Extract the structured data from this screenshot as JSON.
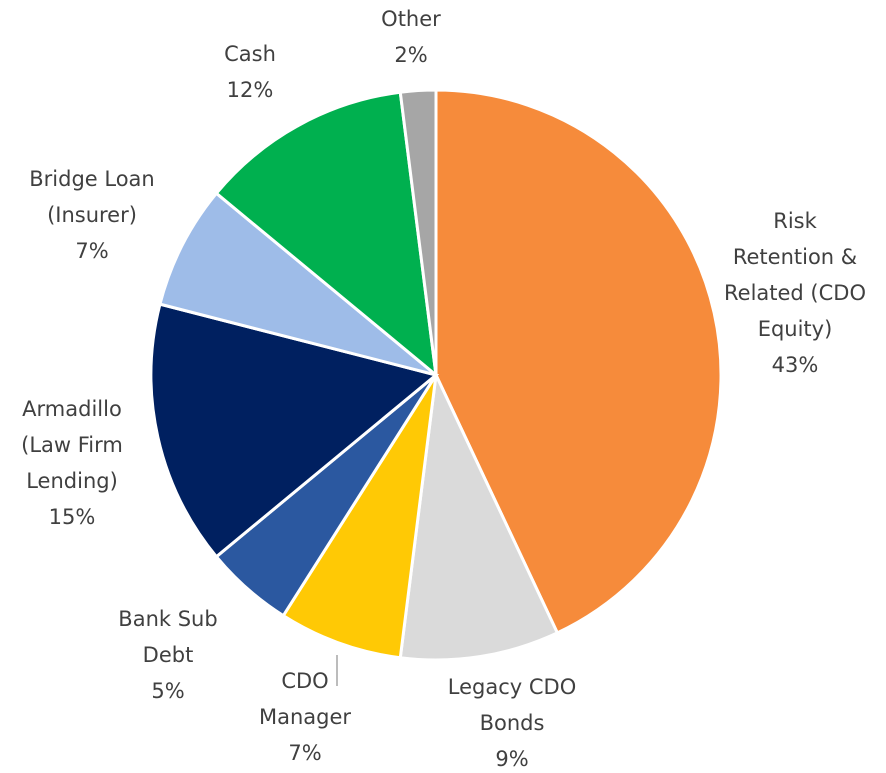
{
  "chart_data": {
    "type": "pie",
    "categories": [
      "Risk\nRetention &\nRelated (CDO\nEquity)",
      "Legacy CDO\nBonds",
      "CDO\nManager",
      "Bank Sub\nDebt",
      "Armadillo\n(Law Firm\nLending)",
      "Bridge Loan\n(Insurer)",
      "Cash",
      "Other"
    ],
    "values": [
      43,
      9,
      7,
      5,
      15,
      7,
      12,
      2
    ],
    "value_labels": [
      "43%",
      "9%",
      "7%",
      "5%",
      "15%",
      "7%",
      "12%",
      "2%"
    ],
    "colors": [
      "#F68B3B",
      "#DADADA",
      "#FFC905",
      "#2B58A0",
      "#002060",
      "#9EBCE8",
      "#00B04F",
      "#A6A6A6"
    ]
  }
}
